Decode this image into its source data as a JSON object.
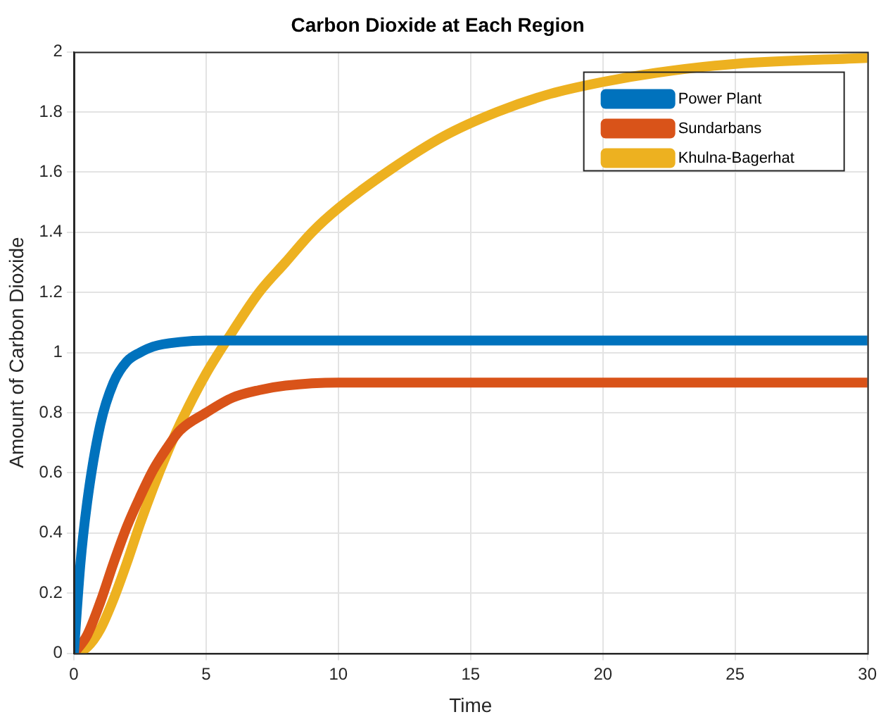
{
  "chart_data": {
    "type": "line",
    "title": "Carbon Dioxide at Each Region",
    "xlabel": "Time",
    "ylabel": "Amount of Carbon Dioxide",
    "xlim": [
      0,
      30
    ],
    "xticks": [
      0,
      5,
      10,
      15,
      20,
      25,
      30
    ],
    "ylim": [
      0,
      2
    ],
    "yticks": [
      0,
      0.2,
      0.4,
      0.6,
      0.8,
      1,
      1.2,
      1.4,
      1.6,
      1.8,
      2
    ],
    "grid": true,
    "legend": "top right",
    "marker": "none",
    "line_style": "solid",
    "series": [
      {
        "name": "Power Plant",
        "color": "#0072bd",
        "x": [
          0,
          0.25,
          0.5,
          1,
          1.5,
          2,
          2.5,
          3,
          4,
          5,
          6,
          8,
          10,
          15,
          20,
          25,
          30
        ],
        "values": [
          0,
          0.3,
          0.5,
          0.76,
          0.9,
          0.97,
          1,
          1.02,
          1.035,
          1.04,
          1.04,
          1.04,
          1.04,
          1.04,
          1.04,
          1.04,
          1.04
        ]
      },
      {
        "name": "Sundarbans",
        "color": "#d95319",
        "x": [
          0,
          0.5,
          1,
          1.5,
          2,
          2.5,
          3,
          3.5,
          4,
          5,
          6,
          7,
          8,
          10,
          15,
          20,
          25,
          30
        ],
        "values": [
          0,
          0.06,
          0.17,
          0.3,
          0.42,
          0.52,
          0.61,
          0.68,
          0.74,
          0.8,
          0.85,
          0.875,
          0.89,
          0.9,
          0.9,
          0.9,
          0.9,
          0.9
        ]
      },
      {
        "name": "Khulna-Bagerhat",
        "color": "#edb120",
        "x": [
          0,
          0.5,
          1,
          1.5,
          2,
          2.5,
          3,
          3.5,
          4,
          5,
          6,
          7,
          8,
          9,
          10,
          12,
          14,
          16,
          18,
          20,
          22,
          25,
          30
        ],
        "values": [
          0,
          0.02,
          0.08,
          0.18,
          0.3,
          0.43,
          0.55,
          0.66,
          0.76,
          0.93,
          1.07,
          1.2,
          1.3,
          1.4,
          1.48,
          1.61,
          1.72,
          1.8,
          1.86,
          1.9,
          1.93,
          1.96,
          1.98
        ]
      }
    ]
  }
}
